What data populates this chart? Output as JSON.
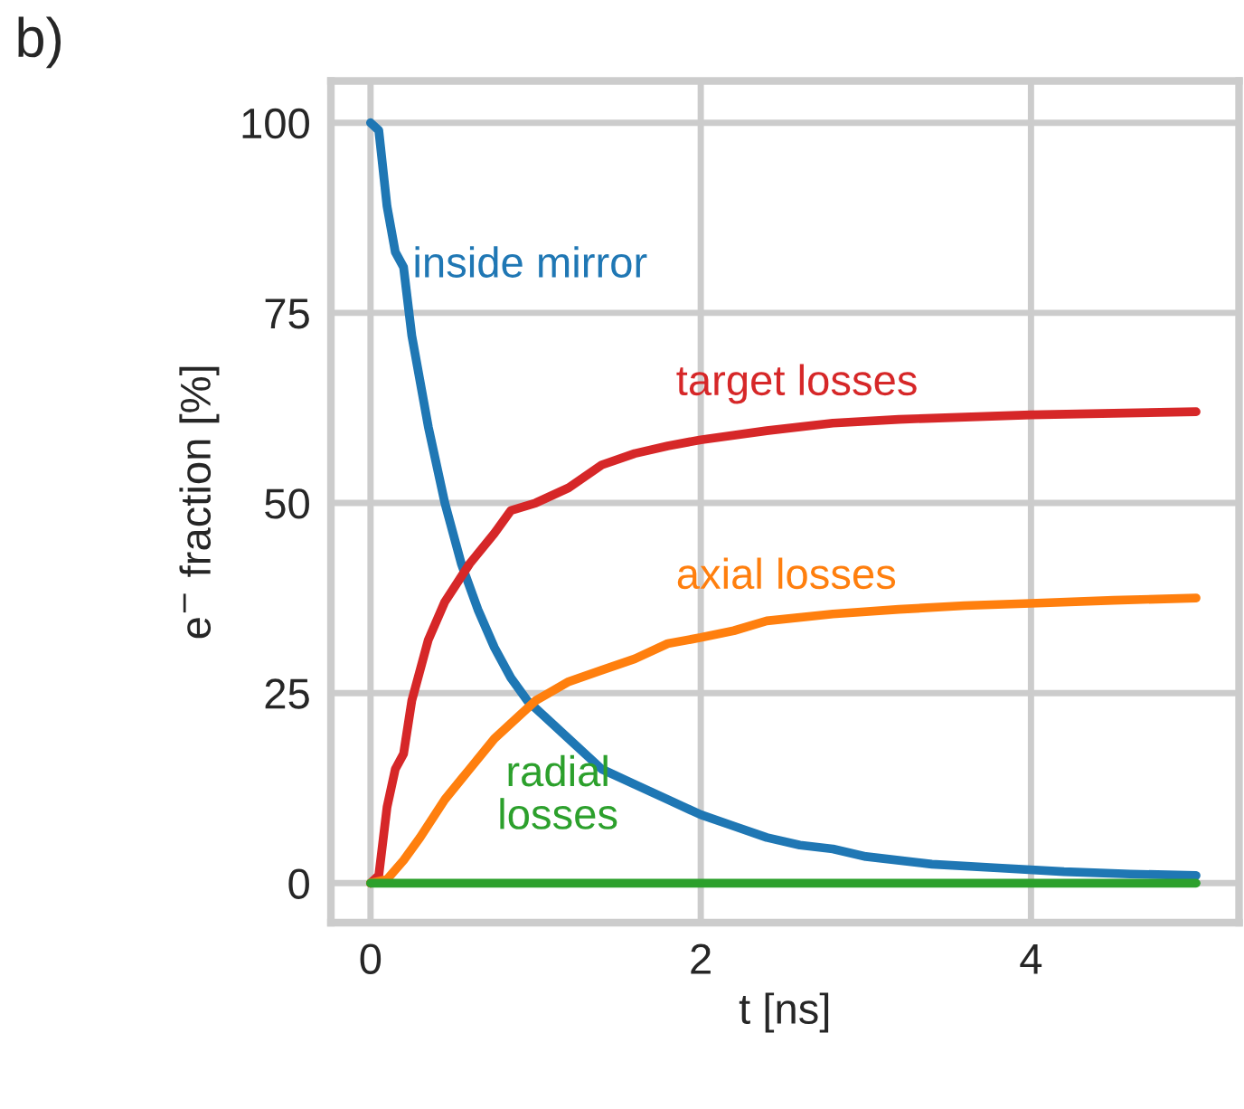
{
  "chart_data": {
    "type": "line",
    "xlabel": "t [ns]",
    "ylabel": "e$^{−}$ fraction [%]",
    "annotations": [
      "b)"
    ],
    "xlim": [
      -0.24,
      5.26
    ],
    "ylim": [
      -5.2,
      105.5
    ],
    "xticks": [
      0,
      2,
      4
    ],
    "yticks": [
      0,
      25,
      50,
      75,
      100
    ],
    "grid": true,
    "legend": false,
    "marker": "none",
    "line_style": "solid",
    "series": [
      {
        "name": "inside mirror",
        "color": "#1f77b4",
        "x": [
          0,
          0.05,
          0.1,
          0.15,
          0.2,
          0.25,
          0.35,
          0.45,
          0.55,
          0.65,
          0.75,
          0.85,
          0.95,
          1.05,
          1.2,
          1.4,
          1.6,
          1.8,
          2.0,
          2.2,
          2.4,
          2.6,
          2.8,
          3.0,
          3.4,
          3.8,
          4.2,
          4.6,
          5.0
        ],
        "values": [
          100,
          99,
          89,
          83,
          81,
          72,
          60,
          50,
          42,
          36,
          31,
          27,
          24,
          22,
          19,
          15,
          13,
          11,
          9,
          7.5,
          6,
          5,
          4.5,
          3.5,
          2.5,
          2,
          1.5,
          1.2,
          1
        ]
      },
      {
        "name": "target losses",
        "color": "#d62728",
        "x": [
          0,
          0.05,
          0.1,
          0.15,
          0.2,
          0.25,
          0.35,
          0.45,
          0.6,
          0.75,
          0.85,
          1.0,
          1.2,
          1.4,
          1.6,
          1.8,
          2.0,
          2.4,
          2.8,
          3.2,
          3.6,
          4.0,
          4.5,
          5.0
        ],
        "values": [
          0,
          1,
          10,
          15,
          17,
          24,
          32,
          37,
          42,
          46,
          49,
          50,
          52,
          55,
          56.5,
          57.5,
          58.3,
          59.5,
          60.5,
          61,
          61.3,
          61.6,
          61.8,
          62
        ]
      },
      {
        "name": "axial losses",
        "color": "#ff7f0e",
        "x": [
          0,
          0.1,
          0.2,
          0.3,
          0.45,
          0.6,
          0.75,
          0.9,
          1.0,
          1.2,
          1.4,
          1.6,
          1.8,
          2.0,
          2.2,
          2.4,
          2.8,
          3.2,
          3.6,
          4.0,
          4.5,
          5.0
        ],
        "values": [
          0,
          0.5,
          3,
          6,
          11,
          15,
          19,
          22,
          24,
          26.5,
          28,
          29.5,
          31.5,
          32.3,
          33.2,
          34.5,
          35.4,
          36,
          36.5,
          36.8,
          37.2,
          37.5
        ]
      },
      {
        "name": "radial\nlosses",
        "color": "#2ca02c",
        "x": [
          0,
          5.0
        ],
        "values": [
          0,
          0
        ]
      }
    ]
  }
}
